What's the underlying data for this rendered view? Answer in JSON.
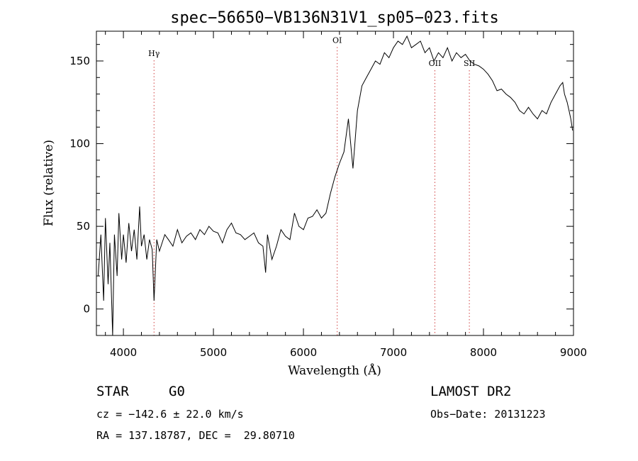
{
  "chart_data": {
    "type": "line",
    "title": "spec−56650−VB136N31V1_sp05−023.fits",
    "xlabel": "Wavelength (Å)",
    "ylabel": "Flux (relative)",
    "xlim": [
      3700,
      9000
    ],
    "ylim": [
      -16,
      168
    ],
    "x_ticks": [
      {
        "value": 4000,
        "label": "4000"
      },
      {
        "value": 5000,
        "label": "5000"
      },
      {
        "value": 6000,
        "label": "6000"
      },
      {
        "value": 7000,
        "label": "7000"
      },
      {
        "value": 8000,
        "label": "8000"
      },
      {
        "value": 9000,
        "label": "9000"
      }
    ],
    "y_ticks": [
      {
        "value": 0,
        "label": "0"
      },
      {
        "value": 50,
        "label": "50"
      },
      {
        "value": 100,
        "label": "100"
      },
      {
        "value": 150,
        "label": "150"
      }
    ],
    "line_markers": [
      {
        "wavelength": 4340,
        "label": "Hγ",
        "label_y": 153
      },
      {
        "wavelength": 6375,
        "label": "OI",
        "label_y": 161
      },
      {
        "wavelength": 7460,
        "label": "OII",
        "label_y": 147
      },
      {
        "wavelength": 7843,
        "label": "SII",
        "label_y": 147
      }
    ],
    "series": [
      {
        "x": [
          3720,
          3750,
          3780,
          3800,
          3830,
          3850,
          3880,
          3900,
          3930,
          3950,
          3980,
          4000,
          4030,
          4060,
          4090,
          4120,
          4150,
          4180,
          4200,
          4230,
          4260,
          4290,
          4320,
          4340,
          4370,
          4400,
          4430,
          4460,
          4500,
          4550,
          4600,
          4650,
          4700,
          4750,
          4800,
          4850,
          4900,
          4950,
          5000,
          5050,
          5100,
          5150,
          5200,
          5250,
          5300,
          5350,
          5400,
          5450,
          5500,
          5550,
          5580,
          5600,
          5650,
          5700,
          5750,
          5800,
          5850,
          5900,
          5950,
          6000,
          6050,
          6100,
          6150,
          6200,
          6250,
          6300,
          6350,
          6400,
          6450,
          6500,
          6550,
          6600,
          6650,
          6700,
          6750,
          6800,
          6850,
          6900,
          6950,
          7000,
          7050,
          7100,
          7150,
          7200,
          7250,
          7300,
          7350,
          7400,
          7450,
          7500,
          7550,
          7600,
          7650,
          7700,
          7750,
          7800,
          7850,
          7900,
          7950,
          8000,
          8050,
          8100,
          8150,
          8200,
          8250,
          8300,
          8350,
          8400,
          8450,
          8500,
          8550,
          8600,
          8650,
          8700,
          8750,
          8800,
          8850,
          8880,
          8900,
          8930,
          8950,
          8970,
          8990
        ],
        "y": [
          20,
          45,
          5,
          55,
          15,
          40,
          -16,
          45,
          20,
          58,
          30,
          45,
          28,
          52,
          35,
          48,
          30,
          62,
          38,
          45,
          30,
          42,
          36,
          5,
          42,
          35,
          40,
          45,
          42,
          38,
          48,
          40,
          44,
          46,
          42,
          48,
          45,
          50,
          47,
          46,
          40,
          48,
          52,
          46,
          45,
          42,
          44,
          46,
          40,
          38,
          22,
          45,
          30,
          38,
          48,
          44,
          42,
          58,
          50,
          48,
          55,
          56,
          60,
          55,
          58,
          70,
          80,
          88,
          95,
          115,
          85,
          120,
          135,
          140,
          145,
          150,
          148,
          155,
          152,
          158,
          162,
          160,
          165,
          158,
          160,
          162,
          155,
          158,
          150,
          155,
          152,
          158,
          150,
          155,
          152,
          154,
          150,
          148,
          147,
          145,
          142,
          138,
          132,
          133,
          130,
          128,
          125,
          120,
          118,
          122,
          118,
          115,
          120,
          118,
          125,
          130,
          135,
          137,
          130,
          125,
          120,
          115,
          108
        ]
      }
    ]
  },
  "info": {
    "object_type": "STAR",
    "subclass": "G0",
    "survey": "LAMOST DR2",
    "cz": "cz = −142.6 ± 22.0 km/s",
    "obs_date": "Obs−Date: 20131223",
    "coords": "RA = 137.18787, DEC =  29.80710"
  }
}
